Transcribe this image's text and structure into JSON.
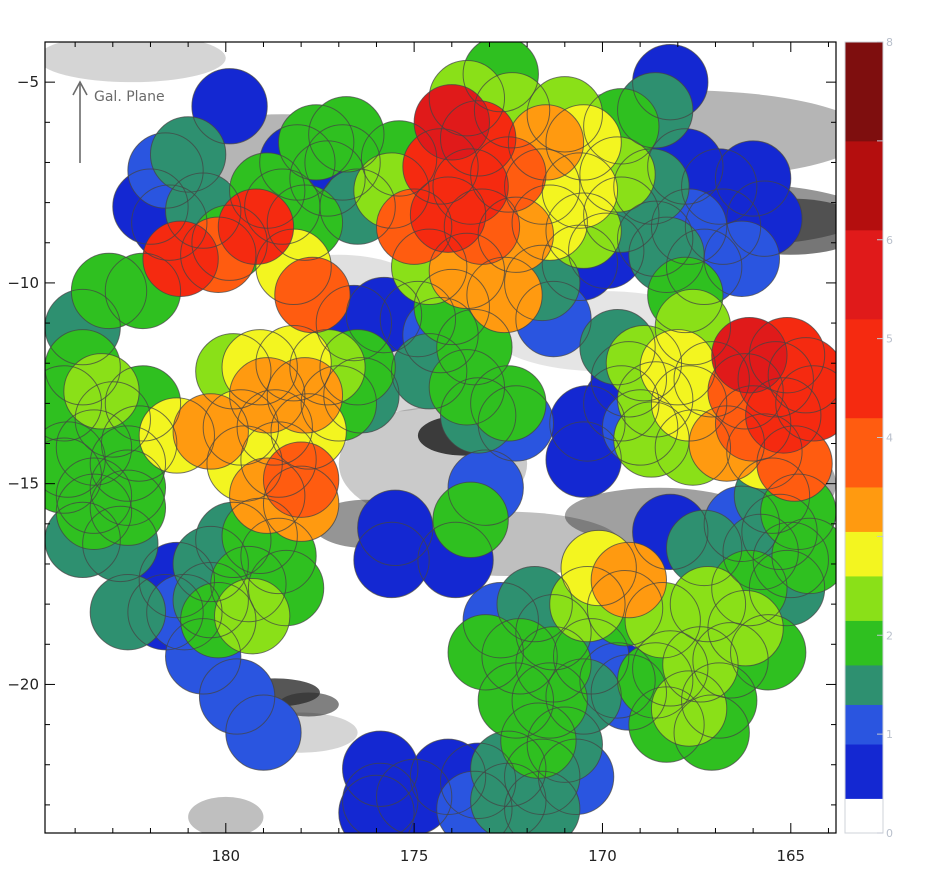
{
  "chart_data": {
    "type": "heatmap",
    "title": "",
    "xlabel": "",
    "ylabel": "",
    "xlim": [
      184.8,
      163.8
    ],
    "ylim": [
      -23.7,
      -4.0
    ],
    "x_reversed": true,
    "x_ticks": [
      180,
      175,
      170,
      165
    ],
    "y_ticks": [
      -5,
      -10,
      -15,
      -20
    ],
    "grid": false,
    "annotation": "Gal. Plane",
    "colorbar": {
      "min": 0,
      "max": 8,
      "ticks": [
        0,
        1,
        2,
        3,
        4,
        5,
        6,
        7,
        8
      ],
      "tick_labels": [
        "0",
        "1",
        "2",
        "4",
        "5",
        "6",
        "8"
      ],
      "label_at": [
        0,
        1,
        2,
        4,
        5,
        6,
        8
      ],
      "colors": [
        "#ffffff",
        "#1428d2",
        "#2a55e0",
        "#2e9070",
        "#2fc020",
        "#8ae018",
        "#f3f520",
        "#ff9a10",
        "#ff5c10",
        "#f52a10",
        "#e01a1a",
        "#b40e0e",
        "#7e0e0e"
      ],
      "bands": [
        0.0,
        0.35,
        0.9,
        1.3,
        1.7,
        2.15,
        2.6,
        3.05,
        3.5,
        4.2,
        5.2,
        6.1,
        7.0,
        8.0
      ]
    },
    "fields": [
      {
        "x": 179.9,
        "y": -5.6,
        "v": 0.4
      },
      {
        "x": 172.7,
        "y": -4.8,
        "v": 2.1
      },
      {
        "x": 173.6,
        "y": -5.4,
        "v": 2.4
      },
      {
        "x": 172.4,
        "y": -5.7,
        "v": 2.3
      },
      {
        "x": 174.0,
        "y": -6.0,
        "v": 5.6
      },
      {
        "x": 173.3,
        "y": -6.4,
        "v": 4.5
      },
      {
        "x": 171.5,
        "y": -6.5,
        "v": 3.2
      },
      {
        "x": 170.5,
        "y": -6.5,
        "v": 2.9
      },
      {
        "x": 169.5,
        "y": -6.1,
        "v": 2.0
      },
      {
        "x": 168.6,
        "y": -5.7,
        "v": 1.4
      },
      {
        "x": 168.2,
        "y": -5.0,
        "v": 0.6
      },
      {
        "x": 171.0,
        "y": -5.8,
        "v": 2.2
      },
      {
        "x": 174.3,
        "y": -7.1,
        "v": 4.8
      },
      {
        "x": 173.5,
        "y": -7.6,
        "v": 4.2
      },
      {
        "x": 172.5,
        "y": -7.3,
        "v": 3.5
      },
      {
        "x": 171.6,
        "y": -7.6,
        "v": 3.0
      },
      {
        "x": 170.6,
        "y": -7.7,
        "v": 2.7
      },
      {
        "x": 169.6,
        "y": -7.3,
        "v": 2.5
      },
      {
        "x": 168.7,
        "y": -7.6,
        "v": 1.6
      },
      {
        "x": 167.8,
        "y": -7.1,
        "v": 0.5
      },
      {
        "x": 166.9,
        "y": -7.6,
        "v": 0.5
      },
      {
        "x": 166.0,
        "y": -7.4,
        "v": 0.4
      },
      {
        "x": 165.7,
        "y": -8.4,
        "v": 0.4
      },
      {
        "x": 166.8,
        "y": -8.6,
        "v": 0.5
      },
      {
        "x": 167.7,
        "y": -8.6,
        "v": 1.1
      },
      {
        "x": 168.6,
        "y": -8.9,
        "v": 0.8
      },
      {
        "x": 169.5,
        "y": -8.3,
        "v": 1.6
      },
      {
        "x": 170.5,
        "y": -8.7,
        "v": 2.3
      },
      {
        "x": 171.4,
        "y": -8.5,
        "v": 2.6
      },
      {
        "x": 172.3,
        "y": -8.8,
        "v": 3.3
      },
      {
        "x": 173.2,
        "y": -8.6,
        "v": 3.8
      },
      {
        "x": 174.1,
        "y": -8.3,
        "v": 4.6
      },
      {
        "x": 175.0,
        "y": -8.6,
        "v": 3.5
      },
      {
        "x": 175.6,
        "y": -7.7,
        "v": 2.3
      },
      {
        "x": 176.5,
        "y": -8.1,
        "v": 1.3
      },
      {
        "x": 175.4,
        "y": -6.9,
        "v": 2.1
      },
      {
        "x": 176.8,
        "y": -6.3,
        "v": 1.9
      },
      {
        "x": 177.6,
        "y": -6.5,
        "v": 1.8
      },
      {
        "x": 178.1,
        "y": -7.0,
        "v": 0.5
      },
      {
        "x": 177.3,
        "y": -7.4,
        "v": 0.5
      },
      {
        "x": 176.9,
        "y": -7.0,
        "v": 0.5
      },
      {
        "x": 174.6,
        "y": -9.6,
        "v": 2.2
      },
      {
        "x": 173.6,
        "y": -9.7,
        "v": 3.1
      },
      {
        "x": 172.6,
        "y": -10.3,
        "v": 3.3
      },
      {
        "x": 171.6,
        "y": -10.0,
        "v": 1.5
      },
      {
        "x": 171.3,
        "y": -10.9,
        "v": 1.0
      },
      {
        "x": 170.6,
        "y": -9.5,
        "v": 0.8
      },
      {
        "x": 169.9,
        "y": -9.2,
        "v": 0.4
      },
      {
        "x": 174.0,
        "y": -10.6,
        "v": 1.9
      },
      {
        "x": 174.3,
        "y": -11.3,
        "v": 1.2
      },
      {
        "x": 173.4,
        "y": -11.6,
        "v": 1.7
      },
      {
        "x": 174.9,
        "y": -10.9,
        "v": 0.5
      },
      {
        "x": 175.8,
        "y": -10.8,
        "v": 0.4
      },
      {
        "x": 176.6,
        "y": -11.0,
        "v": 0.4
      },
      {
        "x": 174.6,
        "y": -12.2,
        "v": 1.3
      },
      {
        "x": 173.6,
        "y": -12.6,
        "v": 1.7
      },
      {
        "x": 173.3,
        "y": -13.3,
        "v": 1.6
      },
      {
        "x": 172.5,
        "y": -13.0,
        "v": 1.7
      },
      {
        "x": 172.3,
        "y": -13.5,
        "v": 1.2
      },
      {
        "x": 168.3,
        "y": -9.3,
        "v": 1.3
      },
      {
        "x": 167.3,
        "y": -9.6,
        "v": 1.2
      },
      {
        "x": 166.3,
        "y": -9.4,
        "v": 1.1
      },
      {
        "x": 167.8,
        "y": -10.3,
        "v": 1.9
      },
      {
        "x": 167.6,
        "y": -11.1,
        "v": 2.3
      },
      {
        "x": 169.6,
        "y": -11.6,
        "v": 1.5
      },
      {
        "x": 169.3,
        "y": -12.4,
        "v": 0.7
      },
      {
        "x": 169.5,
        "y": -13.0,
        "v": 0.4
      },
      {
        "x": 169.0,
        "y": -13.6,
        "v": 1.0
      },
      {
        "x": 179.9,
        "y": -9.0,
        "v": 2.1
      },
      {
        "x": 180.6,
        "y": -8.2,
        "v": 1.6
      },
      {
        "x": 181.2,
        "y": -9.4,
        "v": 4.6
      },
      {
        "x": 180.2,
        "y": -9.3,
        "v": 4.0
      },
      {
        "x": 179.2,
        "y": -8.6,
        "v": 4.8
      },
      {
        "x": 178.5,
        "y": -8.1,
        "v": 2.0
      },
      {
        "x": 178.9,
        "y": -7.7,
        "v": 1.9
      },
      {
        "x": 177.9,
        "y": -8.5,
        "v": 1.7
      },
      {
        "x": 178.2,
        "y": -9.6,
        "v": 2.6
      },
      {
        "x": 177.7,
        "y": -10.3,
        "v": 4.0
      },
      {
        "x": 182.0,
        "y": -8.1,
        "v": 0.5
      },
      {
        "x": 181.5,
        "y": -8.5,
        "v": 0.5
      },
      {
        "x": 181.6,
        "y": -7.2,
        "v": 1.1
      },
      {
        "x": 181.0,
        "y": -6.8,
        "v": 1.3
      },
      {
        "x": 182.2,
        "y": -10.2,
        "v": 2.1
      },
      {
        "x": 183.1,
        "y": -10.2,
        "v": 2.0
      },
      {
        "x": 183.8,
        "y": -11.1,
        "v": 1.6
      },
      {
        "x": 183.8,
        "y": -12.1,
        "v": 2.0
      },
      {
        "x": 184.3,
        "y": -13.0,
        "v": 2.1
      },
      {
        "x": 183.3,
        "y": -12.7,
        "v": 2.3
      },
      {
        "x": 183.0,
        "y": -13.4,
        "v": 2.0
      },
      {
        "x": 182.2,
        "y": -13.0,
        "v": 1.9
      },
      {
        "x": 181.3,
        "y": -13.8,
        "v": 3.0
      },
      {
        "x": 180.4,
        "y": -13.7,
        "v": 3.4
      },
      {
        "x": 184.2,
        "y": -14.4,
        "v": 2.1
      },
      {
        "x": 183.5,
        "y": -14.1,
        "v": 1.8
      },
      {
        "x": 182.6,
        "y": -14.5,
        "v": 1.7
      },
      {
        "x": 182.3,
        "y": -14.0,
        "v": 2.1
      },
      {
        "x": 184.3,
        "y": -14.8,
        "v": 2.0
      },
      {
        "x": 183.5,
        "y": -15.3,
        "v": 1.6
      },
      {
        "x": 182.6,
        "y": -15.1,
        "v": 1.8
      },
      {
        "x": 183.5,
        "y": -15.7,
        "v": 1.7
      },
      {
        "x": 182.6,
        "y": -15.6,
        "v": 1.7
      },
      {
        "x": 183.8,
        "y": -16.4,
        "v": 1.6
      },
      {
        "x": 182.8,
        "y": -16.5,
        "v": 1.5
      },
      {
        "x": 182.6,
        "y": -18.2,
        "v": 1.3
      },
      {
        "x": 179.1,
        "y": -12.1,
        "v": 2.6
      },
      {
        "x": 178.2,
        "y": -12.0,
        "v": 2.8
      },
      {
        "x": 177.3,
        "y": -12.1,
        "v": 2.5
      },
      {
        "x": 176.5,
        "y": -12.1,
        "v": 2.1
      },
      {
        "x": 176.4,
        "y": -12.8,
        "v": 1.6
      },
      {
        "x": 177.0,
        "y": -13.0,
        "v": 2.1
      },
      {
        "x": 177.9,
        "y": -12.8,
        "v": 3.2
      },
      {
        "x": 178.9,
        "y": -12.8,
        "v": 3.3
      },
      {
        "x": 179.8,
        "y": -12.2,
        "v": 2.5
      },
      {
        "x": 179.6,
        "y": -13.6,
        "v": 2.9
      },
      {
        "x": 178.7,
        "y": -13.6,
        "v": 3.0
      },
      {
        "x": 177.8,
        "y": -13.7,
        "v": 2.6
      },
      {
        "x": 179.5,
        "y": -14.5,
        "v": 2.9
      },
      {
        "x": 178.6,
        "y": -14.4,
        "v": 3.0
      },
      {
        "x": 178.0,
        "y": -14.9,
        "v": 3.6
      },
      {
        "x": 178.9,
        "y": -15.3,
        "v": 3.1
      },
      {
        "x": 178.0,
        "y": -15.5,
        "v": 3.3
      },
      {
        "x": 179.1,
        "y": -16.3,
        "v": 2.0
      },
      {
        "x": 179.8,
        "y": -16.4,
        "v": 1.6
      },
      {
        "x": 178.6,
        "y": -16.8,
        "v": 1.9
      },
      {
        "x": 178.4,
        "y": -17.6,
        "v": 2.0
      },
      {
        "x": 179.4,
        "y": -17.5,
        "v": 1.7
      },
      {
        "x": 180.4,
        "y": -17.0,
        "v": 1.3
      },
      {
        "x": 181.3,
        "y": -17.4,
        "v": 0.5
      },
      {
        "x": 180.4,
        "y": -17.9,
        "v": 1.6
      },
      {
        "x": 179.3,
        "y": -18.3,
        "v": 2.2
      },
      {
        "x": 180.2,
        "y": -18.4,
        "v": 2.0
      },
      {
        "x": 181.1,
        "y": -18.2,
        "v": 1.0
      },
      {
        "x": 181.6,
        "y": -18.2,
        "v": 0.5
      },
      {
        "x": 180.6,
        "y": -19.3,
        "v": 1.1
      },
      {
        "x": 179.7,
        "y": -20.3,
        "v": 1.0
      },
      {
        "x": 179.0,
        "y": -21.2,
        "v": 1.0
      },
      {
        "x": 175.5,
        "y": -16.1,
        "v": 0.5
      },
      {
        "x": 175.6,
        "y": -16.9,
        "v": 0.4
      },
      {
        "x": 173.9,
        "y": -16.9,
        "v": 0.4
      },
      {
        "x": 173.5,
        "y": -15.9,
        "v": 1.7
      },
      {
        "x": 173.1,
        "y": -15.1,
        "v": 1.2
      },
      {
        "x": 170.4,
        "y": -13.5,
        "v": 0.6
      },
      {
        "x": 170.5,
        "y": -14.4,
        "v": 0.4
      },
      {
        "x": 168.9,
        "y": -12.0,
        "v": 2.3
      },
      {
        "x": 168.0,
        "y": -12.1,
        "v": 2.6
      },
      {
        "x": 167.1,
        "y": -12.4,
        "v": 1.5
      },
      {
        "x": 166.2,
        "y": -12.7,
        "v": 4.0
      },
      {
        "x": 165.4,
        "y": -12.4,
        "v": 4.9
      },
      {
        "x": 164.6,
        "y": -12.3,
        "v": 5.0
      },
      {
        "x": 165.1,
        "y": -11.8,
        "v": 4.7
      },
      {
        "x": 166.1,
        "y": -11.8,
        "v": 5.2
      },
      {
        "x": 164.4,
        "y": -13.0,
        "v": 4.3
      },
      {
        "x": 165.2,
        "y": -13.3,
        "v": 4.6
      },
      {
        "x": 166.0,
        "y": -13.5,
        "v": 3.8
      },
      {
        "x": 167.7,
        "y": -13.0,
        "v": 2.9
      },
      {
        "x": 168.6,
        "y": -12.9,
        "v": 2.4
      },
      {
        "x": 168.7,
        "y": -13.9,
        "v": 2.3
      },
      {
        "x": 167.6,
        "y": -14.1,
        "v": 2.2
      },
      {
        "x": 166.7,
        "y": -14.0,
        "v": 3.4
      },
      {
        "x": 165.7,
        "y": -14.2,
        "v": 3.0
      },
      {
        "x": 164.9,
        "y": -14.5,
        "v": 3.6
      },
      {
        "x": 165.5,
        "y": -15.3,
        "v": 1.6
      },
      {
        "x": 165.3,
        "y": -16.2,
        "v": 0.5
      },
      {
        "x": 164.8,
        "y": -15.7,
        "v": 1.7
      },
      {
        "x": 168.2,
        "y": -16.2,
        "v": 0.5
      },
      {
        "x": 167.3,
        "y": -16.6,
        "v": 1.4
      },
      {
        "x": 166.3,
        "y": -16.0,
        "v": 1.2
      },
      {
        "x": 165.8,
        "y": -16.7,
        "v": 1.6
      },
      {
        "x": 165.0,
        "y": -16.9,
        "v": 1.5
      },
      {
        "x": 164.5,
        "y": -16.8,
        "v": 1.8
      },
      {
        "x": 165.1,
        "y": -17.6,
        "v": 1.5
      },
      {
        "x": 166.1,
        "y": -17.6,
        "v": 1.9
      },
      {
        "x": 169.3,
        "y": -17.4,
        "v": 3.3
      },
      {
        "x": 170.1,
        "y": -17.1,
        "v": 2.8
      },
      {
        "x": 170.4,
        "y": -18.0,
        "v": 2.3
      },
      {
        "x": 169.4,
        "y": -18.1,
        "v": 2.0
      },
      {
        "x": 168.4,
        "y": -18.4,
        "v": 2.2
      },
      {
        "x": 167.2,
        "y": -18.0,
        "v": 2.4
      },
      {
        "x": 166.2,
        "y": -18.6,
        "v": 2.4
      },
      {
        "x": 165.6,
        "y": -19.2,
        "v": 2.0
      },
      {
        "x": 166.6,
        "y": -19.4,
        "v": 1.9
      },
      {
        "x": 167.4,
        "y": -19.5,
        "v": 2.3
      },
      {
        "x": 168.2,
        "y": -19.6,
        "v": 1.6
      },
      {
        "x": 168.6,
        "y": -19.9,
        "v": 1.9
      },
      {
        "x": 167.7,
        "y": -20.6,
        "v": 2.2
      },
      {
        "x": 166.9,
        "y": -20.4,
        "v": 2.1
      },
      {
        "x": 167.1,
        "y": -21.2,
        "v": 2.0
      },
      {
        "x": 168.3,
        "y": -21.0,
        "v": 1.9
      },
      {
        "x": 171.8,
        "y": -18.0,
        "v": 1.6
      },
      {
        "x": 172.7,
        "y": -18.4,
        "v": 1.2
      },
      {
        "x": 171.3,
        "y": -18.7,
        "v": 1.3
      },
      {
        "x": 170.3,
        "y": -19.3,
        "v": 1.1
      },
      {
        "x": 169.6,
        "y": -19.9,
        "v": 0.7
      },
      {
        "x": 169.3,
        "y": -20.2,
        "v": 1.0
      },
      {
        "x": 173.1,
        "y": -19.2,
        "v": 1.7
      },
      {
        "x": 172.2,
        "y": -19.3,
        "v": 1.9
      },
      {
        "x": 171.3,
        "y": -19.5,
        "v": 1.7
      },
      {
        "x": 170.5,
        "y": -20.3,
        "v": 1.4
      },
      {
        "x": 171.4,
        "y": -20.4,
        "v": 1.9
      },
      {
        "x": 172.3,
        "y": -20.4,
        "v": 1.8
      },
      {
        "x": 171.7,
        "y": -21.4,
        "v": 2.0
      },
      {
        "x": 171.0,
        "y": -21.5,
        "v": 1.6
      },
      {
        "x": 172.5,
        "y": -22.1,
        "v": 1.3
      },
      {
        "x": 171.6,
        "y": -22.3,
        "v": 1.3
      },
      {
        "x": 170.7,
        "y": -22.3,
        "v": 1.2
      },
      {
        "x": 173.3,
        "y": -22.4,
        "v": 0.8
      },
      {
        "x": 173.4,
        "y": -23.1,
        "v": 1.1
      },
      {
        "x": 172.5,
        "y": -22.9,
        "v": 1.6
      },
      {
        "x": 171.6,
        "y": -23.1,
        "v": 1.3
      },
      {
        "x": 174.1,
        "y": -22.3,
        "v": 0.5
      },
      {
        "x": 175.9,
        "y": -22.1,
        "v": 0.5
      },
      {
        "x": 175.9,
        "y": -22.9,
        "v": 0.5
      },
      {
        "x": 175.0,
        "y": -22.8,
        "v": 0.5
      },
      {
        "x": 176.0,
        "y": -23.2,
        "v": 0.4
      }
    ]
  }
}
